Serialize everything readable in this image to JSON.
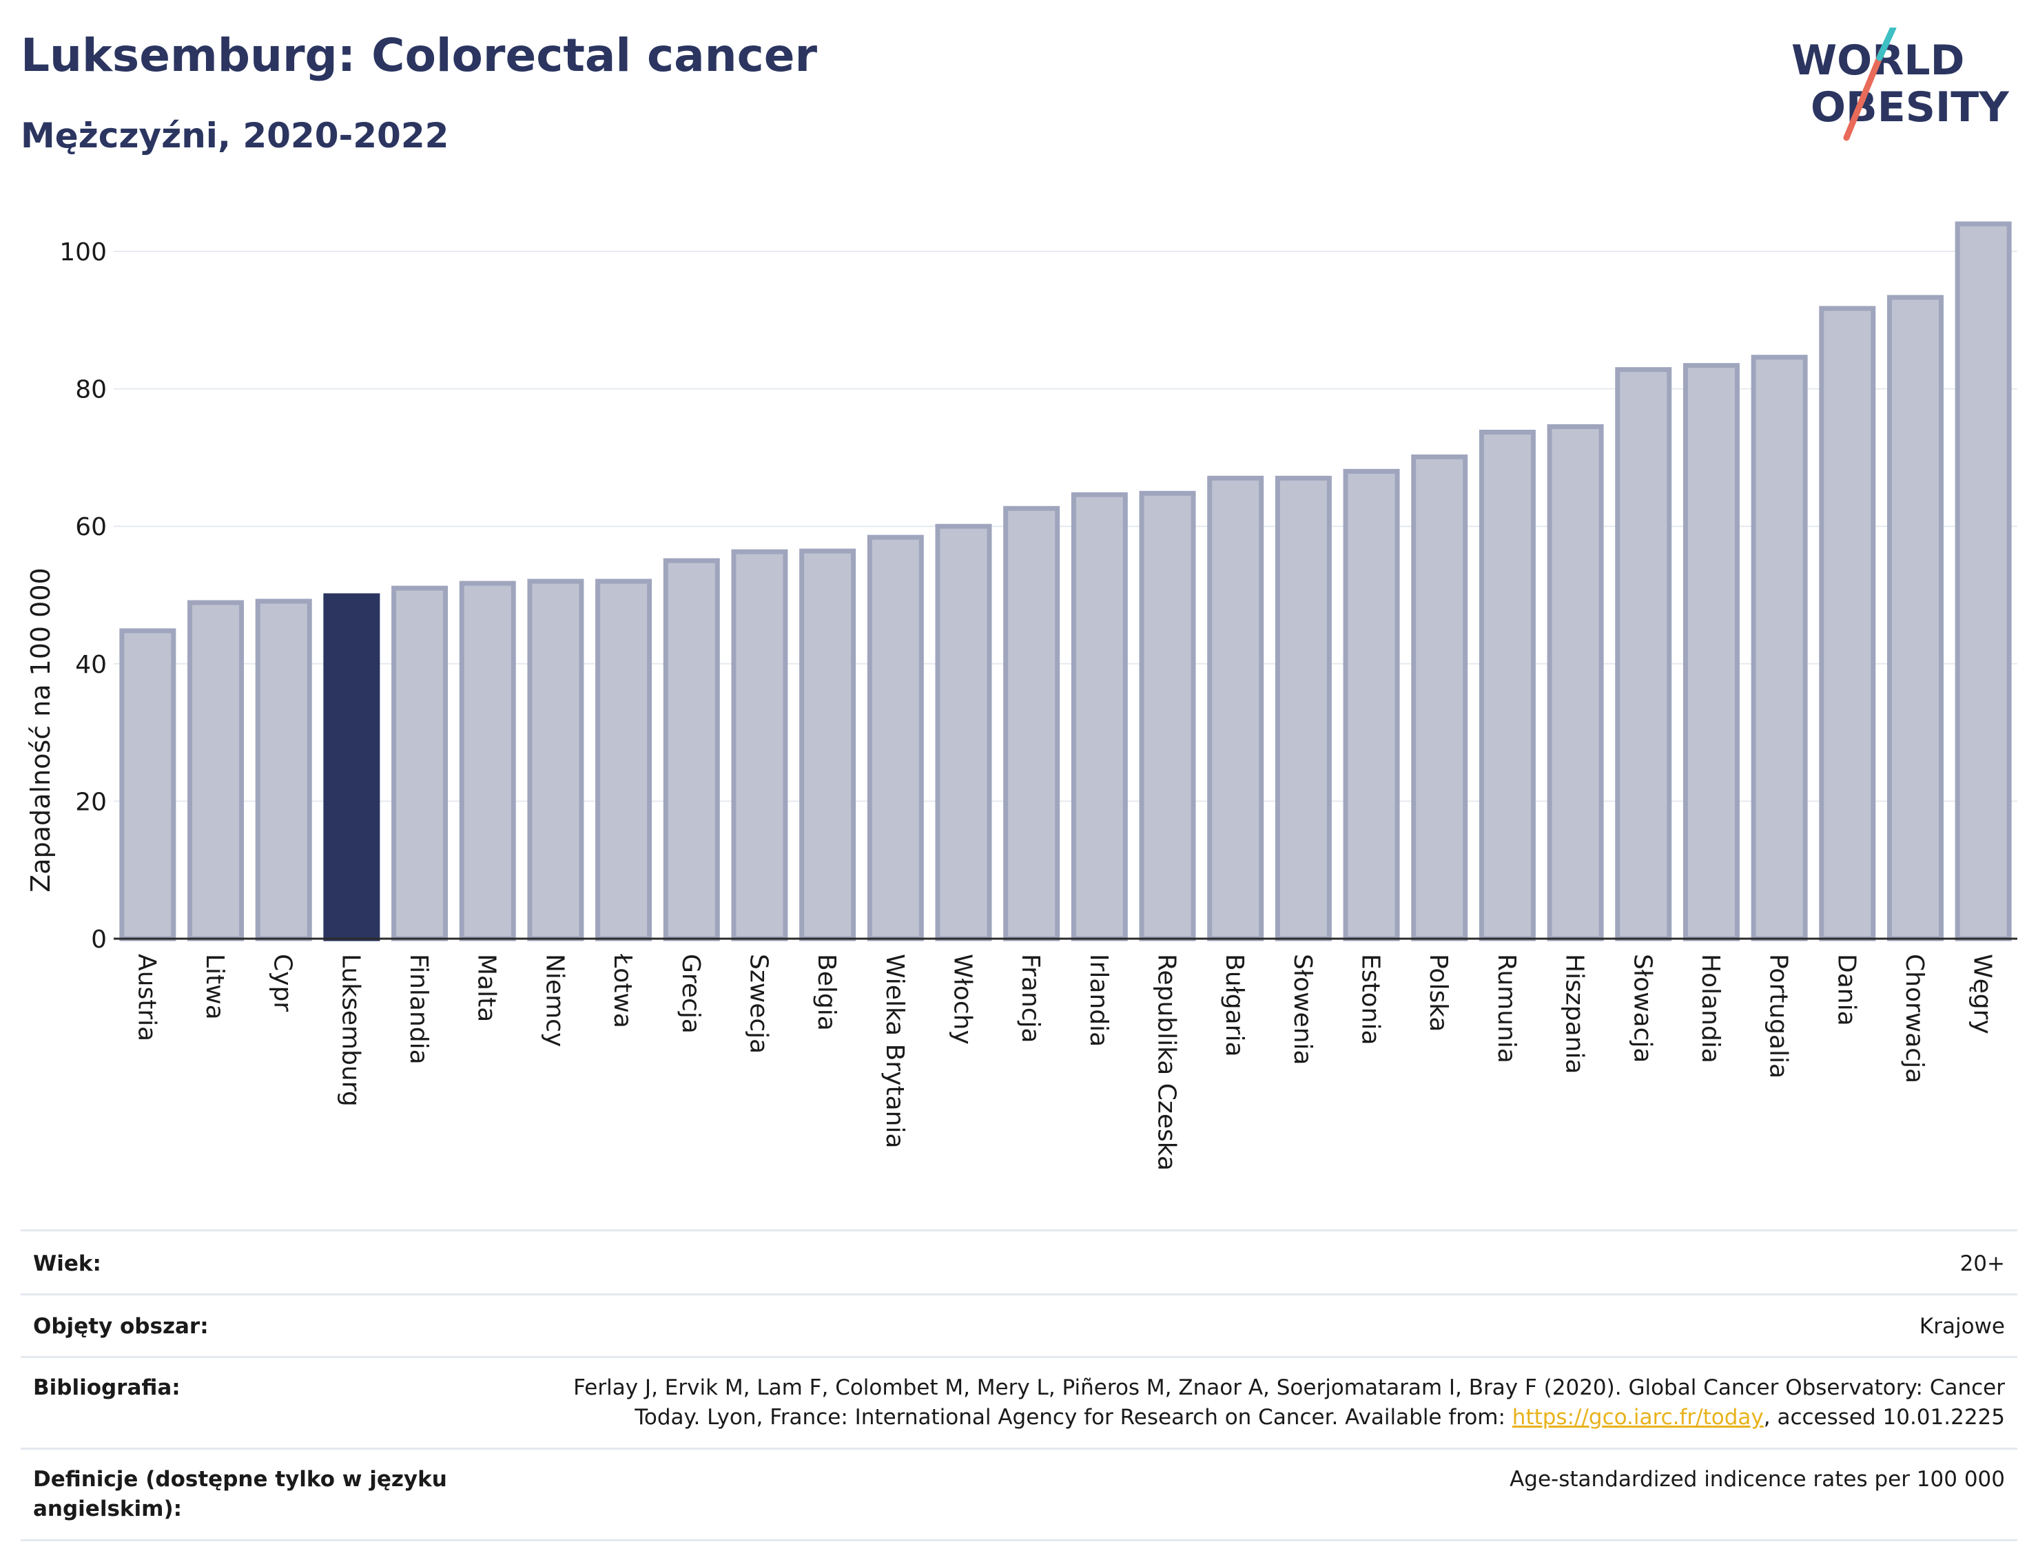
{
  "header": {
    "title": "Luksemburg: Colorectal cancer",
    "subtitle": "Mężczyźni, 2020-2022"
  },
  "logo": {
    "line1": "WORLD",
    "line2": "OBESITY"
  },
  "colors": {
    "bar": "#bfc3d1",
    "bar_outline": "#9fa5bd",
    "highlight": "#2b3560",
    "grid": "#e6eaf0",
    "axis": "#2b2b2b"
  },
  "chart_data": {
    "type": "bar",
    "title": "Luksemburg: Colorectal cancer",
    "subtitle": "Mężczyźni, 2020-2022",
    "xlabel": "",
    "ylabel": "Zapadalność na 100 000",
    "ylim": [
      0,
      105
    ],
    "yticks": [
      0,
      20,
      40,
      60,
      80,
      100
    ],
    "grid": true,
    "highlight": "Luksemburg",
    "categories": [
      "Austria",
      "Litwa",
      "Cypr",
      "Luksemburg",
      "Finlandia",
      "Malta",
      "Niemcy",
      "Łotwa",
      "Grecja",
      "Szwecja",
      "Belgia",
      "Wielka Brytania",
      "Włochy",
      "Francja",
      "Irlandia",
      "Republika Czeska",
      "Bułgaria",
      "Słowenia",
      "Estonia",
      "Polska",
      "Rumunia",
      "Hiszpania",
      "Słowacja",
      "Holandia",
      "Portugalia",
      "Dania",
      "Chorwacja",
      "Węgry"
    ],
    "values": [
      44.8,
      48.9,
      49.1,
      49.9,
      51.0,
      51.7,
      52.0,
      52.0,
      55.0,
      56.3,
      56.4,
      58.4,
      60.0,
      62.6,
      64.6,
      64.8,
      67.0,
      67.0,
      68.0,
      70.1,
      73.7,
      74.5,
      82.8,
      83.4,
      84.6,
      91.7,
      93.3,
      104.0
    ]
  },
  "meta": {
    "age_label": "Wiek:",
    "age_value": "20+",
    "area_label": "Objęty obszar:",
    "area_value": "Krajowe",
    "biblio_label": "Bibliografia:",
    "biblio_line1": "Ferlay J, Ervik M, Lam F, Colombet M, Mery L, Piñeros M, Znaor A, Soerjomataram I, Bray F (2020). Global Cancer Observatory: Cancer",
    "biblio_line2_pre": "Today. Lyon, France: International Agency for Research on Cancer. Available from: ",
    "biblio_link": "https://gco.iarc.fr/today",
    "biblio_line2_post": ", accessed 10.01.2225",
    "def_label": "Definicje (dostępne tylko w języku angielskim):",
    "def_value": "Age-standardized indicence rates per 100 000"
  }
}
